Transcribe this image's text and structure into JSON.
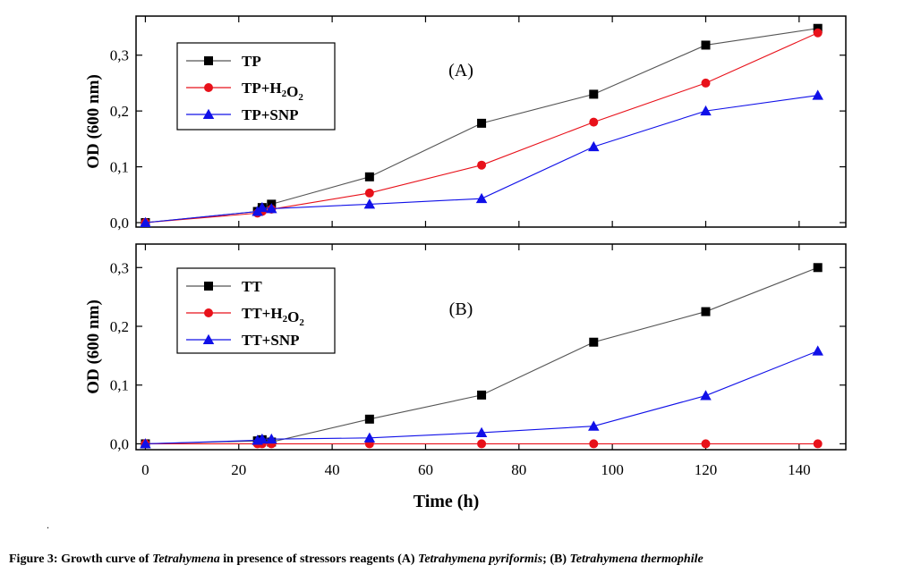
{
  "chart_data": [
    {
      "type": "line",
      "panel_label": "(A)",
      "ylabel": "OD (600 nm)",
      "xlabel": "",
      "xlim": [
        -2,
        150
      ],
      "ylim": [
        -0.008,
        0.37
      ],
      "x_ticks": [
        0,
        20,
        40,
        60,
        80,
        100,
        120,
        140
      ],
      "y_ticks": [
        0.0,
        0.1,
        0.2,
        0.3
      ],
      "y_tick_labels": [
        "0,0",
        "0,1",
        "0,2",
        "0,3"
      ],
      "legend_position": "top-left",
      "series": [
        {
          "name": "TP",
          "marker": "square",
          "color": "#000000",
          "x": [
            0,
            24,
            25,
            27,
            48,
            72,
            96,
            120,
            144
          ],
          "y": [
            0.0,
            0.02,
            0.027,
            0.033,
            0.082,
            0.178,
            0.23,
            0.318,
            0.348
          ]
        },
        {
          "name": "TP+H2O2",
          "marker": "circle",
          "color": "#e8111a",
          "x": [
            0,
            24,
            25,
            27,
            48,
            72,
            96,
            120,
            144
          ],
          "y": [
            0.0,
            0.017,
            0.02,
            0.024,
            0.053,
            0.103,
            0.18,
            0.25,
            0.34
          ]
        },
        {
          "name": "TP+SNP",
          "marker": "triangle",
          "color": "#1010e8",
          "x": [
            0,
            24,
            25,
            27,
            48,
            72,
            96,
            120,
            144
          ],
          "y": [
            0.0,
            0.02,
            0.027,
            0.025,
            0.033,
            0.043,
            0.136,
            0.2,
            0.228
          ]
        }
      ]
    },
    {
      "type": "line",
      "panel_label": "(B)",
      "ylabel": "OD (600 nm)",
      "xlabel": "Time (h)",
      "xlim": [
        -2,
        150
      ],
      "ylim": [
        -0.01,
        0.34
      ],
      "x_ticks": [
        0,
        20,
        40,
        60,
        80,
        100,
        120,
        140
      ],
      "x_tick_labels": [
        "0",
        "20",
        "40",
        "60",
        "80",
        "100",
        "120",
        "140"
      ],
      "y_ticks": [
        0.0,
        0.1,
        0.2,
        0.3
      ],
      "y_tick_labels": [
        "0,0",
        "0,1",
        "0,2",
        "0,3"
      ],
      "legend_position": "top-left",
      "series": [
        {
          "name": "TT",
          "marker": "square",
          "color": "#000000",
          "x": [
            0,
            24,
            25,
            27,
            48,
            72,
            96,
            120,
            144
          ],
          "y": [
            0.0,
            0.005,
            0.007,
            0.003,
            0.042,
            0.083,
            0.173,
            0.225,
            0.3
          ]
        },
        {
          "name": "TT+H2O2",
          "marker": "circle",
          "color": "#e8111a",
          "x": [
            0,
            24,
            25,
            27,
            48,
            72,
            96,
            120,
            144
          ],
          "y": [
            0.0,
            0.0,
            0.0,
            0.0,
            0.0,
            0.0,
            0.0,
            0.0,
            0.0
          ]
        },
        {
          "name": "TT+SNP",
          "marker": "triangle",
          "color": "#1010e8",
          "x": [
            0,
            24,
            25,
            27,
            48,
            72,
            96,
            120,
            144
          ],
          "y": [
            0.0,
            0.006,
            0.008,
            0.008,
            0.01,
            0.019,
            0.03,
            0.082,
            0.158
          ]
        }
      ]
    }
  ],
  "caption": {
    "t1": "Figure 3: Growth curve of ",
    "t2": "Tetrahymena",
    "t3": " in presence of stressors reagents (A) ",
    "t4": "Tetrahymena pyriformis",
    "t5": "; (B) ",
    "t6": "Tetrahymena thermophile"
  },
  "stray_mark": "."
}
